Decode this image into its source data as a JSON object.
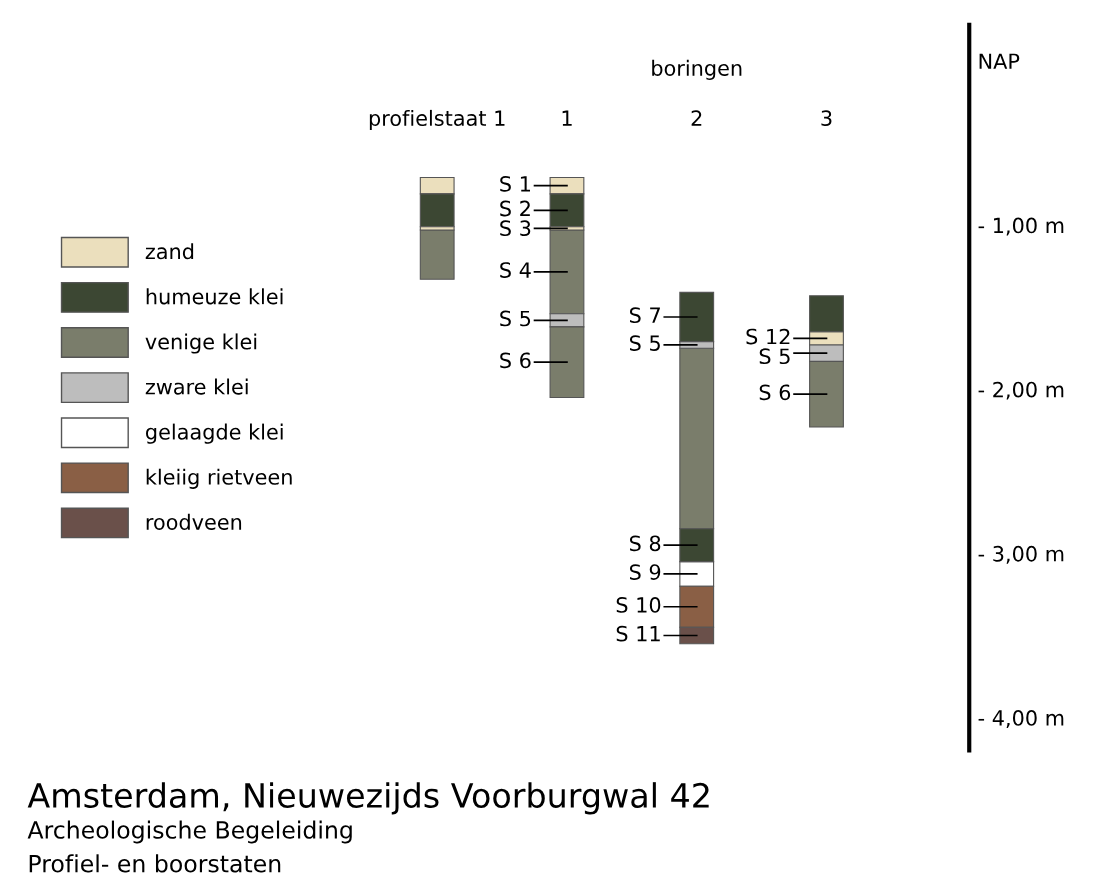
{
  "chart_data": {
    "type": "bar",
    "title": "Amsterdam, Nieuwezijds Voorburgwal 42",
    "subtitle": "Archeologische Begeleiding",
    "xlabel": "boringen",
    "categories": [
      "profielstaat 1",
      "1",
      "2",
      "3"
    ],
    "series": [
      {
        "name": "zand",
        "color": "#ebdfbd",
        "base": [
          -0.71,
          -0.71,
          null,
          -1.65
        ],
        "values": [
          -0.1,
          -0.1,
          null,
          -0.08
        ]
      },
      {
        "name": "humeuze klei",
        "color": "#3c4733",
        "base": [
          -0.81,
          -0.81,
          -1.41,
          -1.43
        ],
        "values": [
          -0.2,
          -0.2,
          -0.3,
          -0.22
        ]
      },
      {
        "name": "venige klei",
        "color": "#7a7d6b",
        "base": [
          -1.03,
          -1.03,
          -1.75,
          -1.83
        ],
        "values": [
          -0.3,
          -0.51,
          -1.1,
          -0.4
        ]
      },
      {
        "name": "zware klei",
        "color": "#bdbdbd",
        "base": [
          null,
          -1.54,
          -1.71,
          -1.73
        ],
        "values": [
          null,
          -0.08,
          -0.04,
          -0.1
        ]
      },
      {
        "name": "gelaagde klei",
        "color": "#ffffff",
        "base": [
          null,
          null,
          -3.05,
          null
        ],
        "values": [
          null,
          null,
          -0.15,
          null
        ]
      },
      {
        "name": "kleiig rietveen",
        "color": "#8a5f45",
        "base": [
          null,
          null,
          -3.2,
          null
        ],
        "values": [
          null,
          null,
          -0.25,
          null
        ]
      },
      {
        "name": "roodveen",
        "color": "#6a504a",
        "base": [
          null,
          null,
          -3.45,
          null
        ],
        "values": [
          null,
          null,
          -0.1,
          null
        ]
      },
      {
        "color": "#ebdfbd",
        "base": [
          -1.01,
          -1.01,
          null,
          null
        ],
        "values": [
          -0.02,
          -0.02,
          null,
          null
        ]
      },
      {
        "color": "#3c4733",
        "base": [
          null,
          null,
          -2.85,
          null
        ],
        "values": [
          null,
          null,
          -0.2,
          null
        ]
      },
      {
        "color": "#7a7d6b",
        "base": [
          null,
          -1.62,
          null,
          null
        ],
        "values": [
          null,
          -0.43,
          null,
          null
        ]
      }
    ],
    "annotations": [
      {
        "text": "S 1",
        "x": "1",
        "y": -0.81
      },
      {
        "text": "S 2",
        "x": "1",
        "y": -1.01
      },
      {
        "text": "S 3",
        "x": "1",
        "y": -1.03
      },
      {
        "text": "S 4",
        "x": "1",
        "y": -1.54
      },
      {
        "text": "S 5",
        "x": "1",
        "y": -1.62
      },
      {
        "text": "S 6",
        "x": "1",
        "y": -2.05
      },
      {
        "text": "S 7",
        "x": "2",
        "y": -1.71
      },
      {
        "text": "S 5",
        "x": "2",
        "y": -1.75
      },
      {
        "text": "S 8",
        "x": "2",
        "y": -3.05
      },
      {
        "text": "S 9",
        "x": "2",
        "y": -3.2
      },
      {
        "text": "S 10",
        "x": "2",
        "y": -3.45
      },
      {
        "text": "S 11",
        "x": "2",
        "y": -3.55
      },
      {
        "text": "S 12",
        "x": "3",
        "y": -1.73
      },
      {
        "text": "S 5",
        "x": "3",
        "y": -1.83
      },
      {
        "text": "S 6",
        "x": "3",
        "y": -2.23
      },
      "Profiel- en boorstaten"
    ],
    "ylim": [
      -4.2,
      0.22
    ],
    "yticks": [
      {
        "value": 0,
        "label": "NAP"
      },
      {
        "value": -1,
        "label": "- 1,00 m"
      },
      {
        "value": -2,
        "label": "- 2,00 m"
      },
      {
        "value": -3,
        "label": "- 3,00 m"
      },
      {
        "value": -4,
        "label": "- 4,00 m"
      }
    ],
    "legend": "center left",
    "grid": false
  }
}
